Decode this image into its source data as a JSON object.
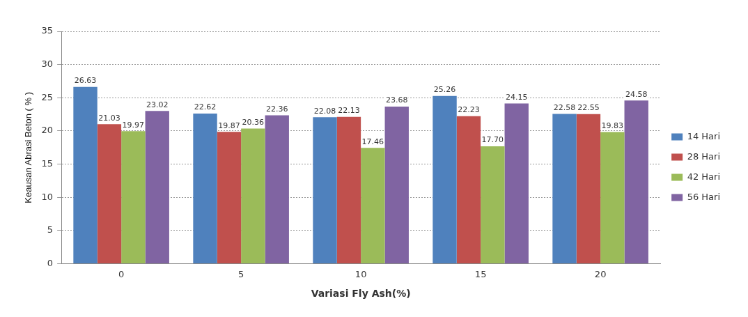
{
  "chart_data": {
    "type": "bar",
    "xlabel": "Variasi Fly Ash(%)",
    "ylabel": "Keausan Abrasi Beton ( % )",
    "categories": [
      "0",
      "5",
      "10",
      "15",
      "20"
    ],
    "series": [
      {
        "name": "14 Hari",
        "color": "#4f81bd",
        "values": [
          26.63,
          22.62,
          22.08,
          25.26,
          22.58
        ]
      },
      {
        "name": "28 Hari",
        "color": "#c0504d",
        "values": [
          21.03,
          19.87,
          22.13,
          22.23,
          22.55
        ]
      },
      {
        "name": "42 Hari",
        "color": "#9bbb59",
        "values": [
          19.97,
          20.36,
          17.46,
          17.7,
          19.83
        ]
      },
      {
        "name": "56 Hari",
        "color": "#8064a2",
        "values": [
          23.02,
          22.36,
          23.68,
          24.15,
          24.58
        ]
      }
    ],
    "value_labels": [
      [
        "26.63",
        "22.62",
        "22.08",
        "25.26",
        "22.58"
      ],
      [
        "21.03",
        "19.87",
        "22.13",
        "22.23",
        "22.55"
      ],
      [
        "19.97",
        "20.36",
        "17.46",
        "17.70",
        "19.83"
      ],
      [
        "23.02",
        "22.36",
        "23.68",
        "24.15",
        "24.58"
      ]
    ],
    "ylim": [
      0,
      35
    ],
    "yticks": [
      0,
      5,
      10,
      15,
      20,
      25,
      30,
      35
    ],
    "grid": "y",
    "legend": "right"
  }
}
